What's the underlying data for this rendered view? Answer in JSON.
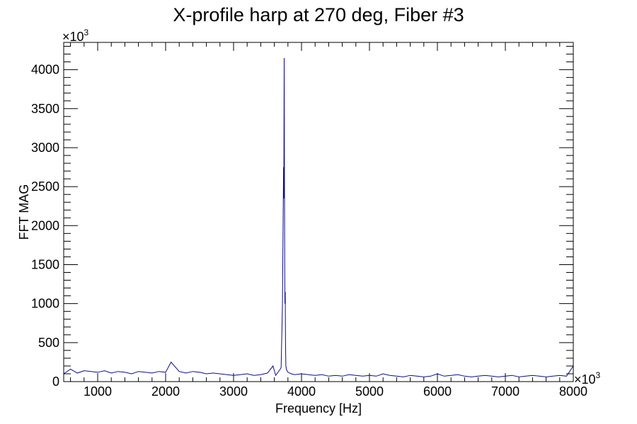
{
  "colors": {
    "series": "#0b0b8f",
    "frame": "#000000",
    "background": "#ffffff"
  },
  "chart_data": {
    "type": "line",
    "title": "X-profile harp at 270 deg, Fiber #3",
    "xlabel": "Frequency [Hz]",
    "ylabel": "FFT MAG",
    "x_multiplier_label": "×10",
    "x_multiplier_exponent": "3",
    "y_multiplier_label": "×10",
    "y_multiplier_exponent": "3",
    "xlim": [
      500,
      8000
    ],
    "ylim": [
      0,
      4350
    ],
    "x_ticks": [
      1000,
      2000,
      3000,
      4000,
      5000,
      6000,
      7000,
      8000
    ],
    "x_tick_labels": [
      "1000",
      "2000",
      "3000",
      "4000",
      "5000",
      "6000",
      "7000",
      "8000"
    ],
    "y_ticks": [
      0,
      500,
      1000,
      1500,
      2000,
      2500,
      3000,
      3500,
      4000
    ],
    "y_tick_labels": [
      "0",
      "500",
      "1000",
      "1500",
      "2000",
      "2500",
      "3000",
      "3500",
      "4000"
    ],
    "grid": false,
    "legend": "none",
    "series": [
      {
        "x": [
          500,
          600,
          700,
          800,
          900,
          1000,
          1100,
          1200,
          1300,
          1400,
          1500,
          1600,
          1700,
          1800,
          1900,
          2000,
          2080,
          2200,
          2300,
          2400,
          2500,
          2600,
          2700,
          2800,
          2900,
          3000,
          3100,
          3200,
          3300,
          3400,
          3500,
          3580,
          3620,
          3680,
          3700,
          3720,
          3735,
          3740,
          3745,
          3750,
          3755,
          3760,
          3765,
          3770,
          3780,
          3800,
          3850,
          3900,
          4000,
          4100,
          4200,
          4300,
          4400,
          4500,
          4600,
          4700,
          4800,
          4900,
          5000,
          5100,
          5200,
          5300,
          5400,
          5500,
          5600,
          5700,
          5800,
          5900,
          6000,
          6100,
          6200,
          6300,
          6400,
          6500,
          6600,
          6700,
          6800,
          6900,
          7000,
          7100,
          7200,
          7300,
          7400,
          7500,
          7600,
          7700,
          7800,
          7900,
          8000
        ],
        "y": [
          100,
          160,
          110,
          140,
          130,
          120,
          140,
          110,
          130,
          120,
          100,
          130,
          120,
          110,
          130,
          120,
          250,
          130,
          110,
          130,
          120,
          100,
          110,
          100,
          90,
          80,
          90,
          100,
          80,
          90,
          110,
          200,
          80,
          150,
          180,
          1000,
          2750,
          2350,
          4150,
          2300,
          1000,
          1150,
          500,
          200,
          150,
          120,
          100,
          90,
          100,
          90,
          80,
          90,
          70,
          80,
          70,
          90,
          80,
          70,
          80,
          70,
          100,
          80,
          70,
          60,
          80,
          70,
          60,
          70,
          100,
          70,
          80,
          90,
          70,
          60,
          70,
          80,
          70,
          60,
          70,
          80,
          60,
          70,
          80,
          70,
          60,
          70,
          80,
          70,
          200
        ]
      }
    ]
  }
}
